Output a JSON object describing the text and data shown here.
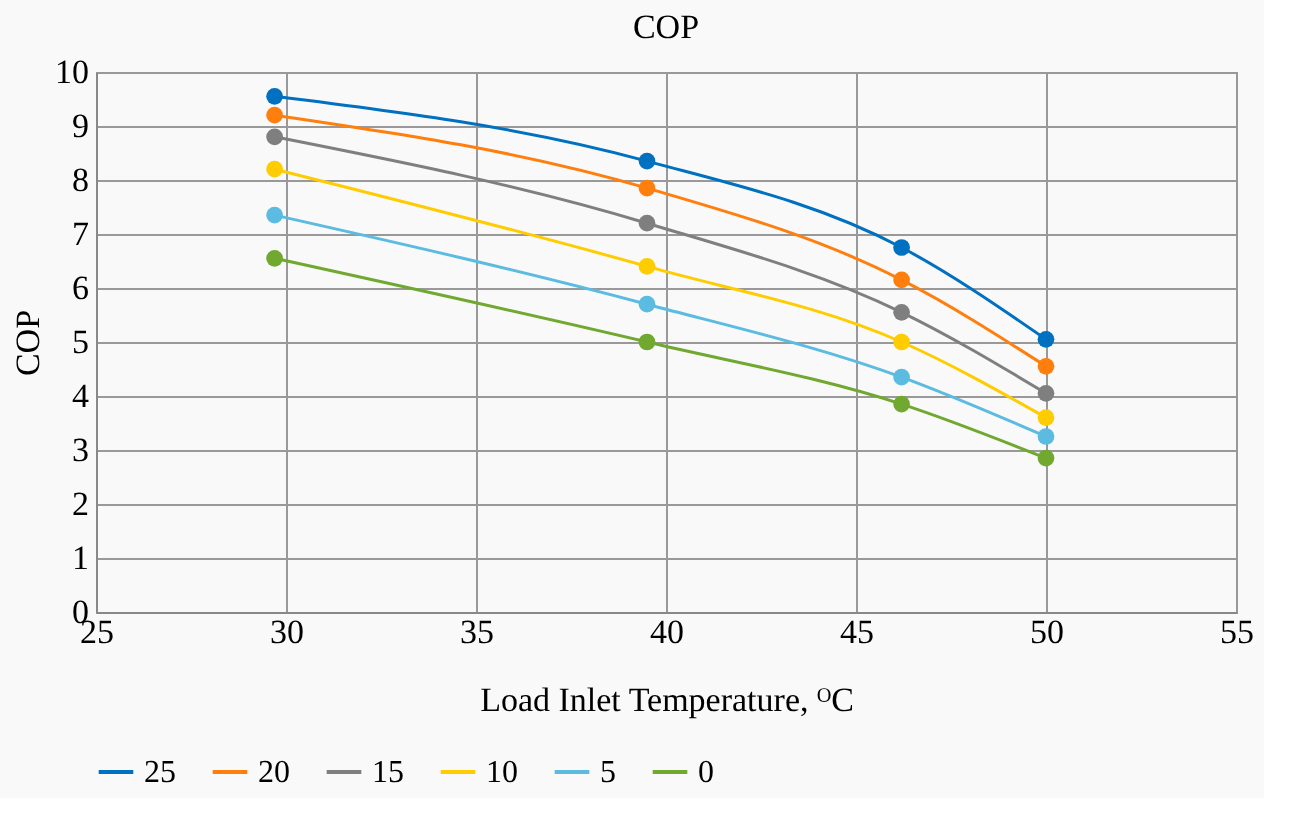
{
  "chart_data": {
    "type": "line",
    "title": "COP",
    "xlabel": "Load Inlet Temperature, ᴼC",
    "ylabel": "COP",
    "x": [
      29.7,
      39.5,
      46.2,
      50.0
    ],
    "series": [
      {
        "name": "25",
        "color": "#0070c0",
        "values": [
          9.55,
          8.35,
          6.75,
          5.05
        ]
      },
      {
        "name": "20",
        "color": "#ff7f0e",
        "values": [
          9.2,
          7.85,
          6.15,
          4.55
        ]
      },
      {
        "name": "15",
        "color": "#7f7f7f",
        "values": [
          8.8,
          7.2,
          5.55,
          4.05
        ]
      },
      {
        "name": "10",
        "color": "#ffcc00",
        "values": [
          8.2,
          6.4,
          5.0,
          3.6
        ]
      },
      {
        "name": "5",
        "color": "#5bbbe0",
        "values": [
          7.35,
          5.7,
          4.35,
          3.25
        ]
      },
      {
        "name": "0",
        "color": "#70a830",
        "values": [
          6.55,
          5.0,
          3.85,
          2.85
        ]
      }
    ],
    "xlim": [
      25,
      55
    ],
    "xticks": [
      25,
      30,
      35,
      40,
      45,
      50,
      55
    ],
    "ylim": [
      0,
      10
    ],
    "yticks": [
      0,
      1,
      2,
      3,
      4,
      5,
      6,
      7,
      8,
      9,
      10
    ],
    "grid": true,
    "legend": "bottom",
    "marker": "circle",
    "line_style": "solid"
  }
}
